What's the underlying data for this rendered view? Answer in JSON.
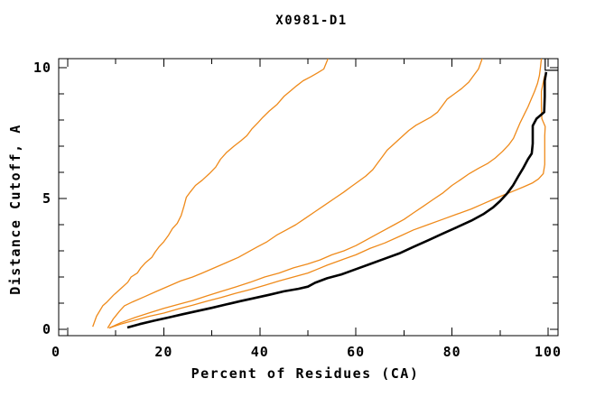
{
  "title": "X0981-D1",
  "colors": {
    "model": "#ef8a1a",
    "target": "#000000",
    "axis": "#000000",
    "background": "#ffffff"
  },
  "axes": {
    "x": {
      "label": "Percent of Residues (CA)",
      "range": [
        0,
        100
      ],
      "major_ticks": [
        0,
        20,
        40,
        60,
        80,
        100
      ],
      "minor_ticks": [
        10,
        30,
        50,
        70,
        90
      ]
    },
    "y": {
      "label": "Distance Cutoff, A",
      "range": [
        0,
        10
      ],
      "major_ticks": [
        0,
        5,
        10
      ],
      "minor_ticks": [
        1,
        2,
        3,
        4,
        6,
        7,
        8,
        9
      ]
    }
  },
  "chart_data": {
    "type": "line",
    "title": "X0981-D1",
    "xlabel": "Percent of Residues (CA)",
    "ylabel": "Distance Cutoff, A",
    "xlim": [
      -2,
      102
    ],
    "ylim": [
      -0.25,
      10.35
    ],
    "grid": false,
    "legend": "none",
    "series": [
      {
        "name": "model-1",
        "role": "model",
        "points": [
          [
            5.2,
            0.1
          ],
          [
            6,
            0.5
          ],
          [
            7.3,
            0.9
          ],
          [
            8.2,
            1.05
          ],
          [
            9.5,
            1.3
          ],
          [
            11,
            1.55
          ],
          [
            12.5,
            1.8
          ],
          [
            13.2,
            2
          ],
          [
            14.5,
            2.15
          ],
          [
            15.2,
            2.35
          ],
          [
            16.2,
            2.55
          ],
          [
            17.5,
            2.75
          ],
          [
            18.2,
            2.95
          ],
          [
            19,
            3.15
          ],
          [
            20,
            3.35
          ],
          [
            21,
            3.6
          ],
          [
            21.8,
            3.85
          ],
          [
            22.8,
            4.05
          ],
          [
            23.6,
            4.35
          ],
          [
            24.2,
            4.7
          ],
          [
            24.7,
            5.05
          ],
          [
            25.5,
            5.25
          ],
          [
            26.6,
            5.5
          ],
          [
            28,
            5.7
          ],
          [
            29.5,
            5.95
          ],
          [
            30.8,
            6.2
          ],
          [
            31.8,
            6.5
          ],
          [
            33,
            6.75
          ],
          [
            34.6,
            7
          ],
          [
            36,
            7.2
          ],
          [
            37.3,
            7.4
          ],
          [
            38.3,
            7.65
          ],
          [
            39.6,
            7.9
          ],
          [
            40.6,
            8.1
          ],
          [
            42,
            8.35
          ],
          [
            43.6,
            8.6
          ],
          [
            45,
            8.9
          ],
          [
            46.3,
            9.1
          ],
          [
            47.6,
            9.3
          ],
          [
            49,
            9.5
          ],
          [
            50.6,
            9.65
          ],
          [
            52,
            9.8
          ],
          [
            53.3,
            9.95
          ],
          [
            54.2,
            10.35
          ]
        ]
      },
      {
        "name": "model-2",
        "role": "model",
        "points": [
          [
            8.3,
            0.05
          ],
          [
            9.5,
            0.4
          ],
          [
            10.8,
            0.7
          ],
          [
            11.8,
            0.9
          ],
          [
            13.5,
            1.05
          ],
          [
            16,
            1.25
          ],
          [
            18.5,
            1.45
          ],
          [
            21,
            1.65
          ],
          [
            23.5,
            1.85
          ],
          [
            26,
            2.0
          ],
          [
            28,
            2.15
          ],
          [
            30.5,
            2.35
          ],
          [
            33,
            2.55
          ],
          [
            35.5,
            2.75
          ],
          [
            37.5,
            2.95
          ],
          [
            39.5,
            3.15
          ],
          [
            41.5,
            3.35
          ],
          [
            43.5,
            3.6
          ],
          [
            45.5,
            3.8
          ],
          [
            47.5,
            4.0
          ],
          [
            49.5,
            4.25
          ],
          [
            51.5,
            4.5
          ],
          [
            53.5,
            4.75
          ],
          [
            55.5,
            5.0
          ],
          [
            57.5,
            5.25
          ],
          [
            59,
            5.45
          ],
          [
            60.5,
            5.65
          ],
          [
            62,
            5.85
          ],
          [
            63.5,
            6.1
          ],
          [
            64.5,
            6.35
          ],
          [
            65.5,
            6.6
          ],
          [
            66.5,
            6.85
          ],
          [
            68,
            7.1
          ],
          [
            69.5,
            7.35
          ],
          [
            71,
            7.6
          ],
          [
            72.5,
            7.8
          ],
          [
            74,
            7.95
          ],
          [
            75.5,
            8.1
          ],
          [
            77,
            8.3
          ],
          [
            78,
            8.55
          ],
          [
            79,
            8.8
          ],
          [
            80.5,
            9.0
          ],
          [
            82,
            9.2
          ],
          [
            83.5,
            9.45
          ],
          [
            84.5,
            9.7
          ],
          [
            85.5,
            9.95
          ],
          [
            86.3,
            10.35
          ]
        ]
      },
      {
        "name": "model-3",
        "role": "model",
        "points": [
          [
            8.6,
            0.05
          ],
          [
            11,
            0.25
          ],
          [
            14,
            0.45
          ],
          [
            17,
            0.63
          ],
          [
            20,
            0.8
          ],
          [
            23,
            0.95
          ],
          [
            26,
            1.1
          ],
          [
            29,
            1.28
          ],
          [
            32,
            1.45
          ],
          [
            35,
            1.62
          ],
          [
            38,
            1.8
          ],
          [
            41,
            2.0
          ],
          [
            44,
            2.15
          ],
          [
            47,
            2.35
          ],
          [
            50,
            2.5
          ],
          [
            52.5,
            2.65
          ],
          [
            55,
            2.85
          ],
          [
            57.5,
            3.0
          ],
          [
            60,
            3.2
          ],
          [
            62,
            3.4
          ],
          [
            64,
            3.6
          ],
          [
            66,
            3.8
          ],
          [
            68,
            4.0
          ],
          [
            70,
            4.2
          ],
          [
            72,
            4.45
          ],
          [
            74,
            4.7
          ],
          [
            76,
            4.95
          ],
          [
            78,
            5.2
          ],
          [
            80,
            5.5
          ],
          [
            81.8,
            5.72
          ],
          [
            83.6,
            5.95
          ],
          [
            85.5,
            6.15
          ],
          [
            87.5,
            6.35
          ],
          [
            89,
            6.55
          ],
          [
            90.5,
            6.8
          ],
          [
            91.8,
            7.05
          ],
          [
            92.8,
            7.3
          ],
          [
            93.6,
            7.65
          ],
          [
            94.2,
            7.9
          ],
          [
            95,
            8.2
          ],
          [
            95.8,
            8.5
          ],
          [
            96.5,
            8.8
          ],
          [
            97.2,
            9.1
          ],
          [
            97.8,
            9.4
          ],
          [
            98.2,
            9.7
          ],
          [
            98.4,
            10.0
          ],
          [
            98.6,
            10.35
          ]
        ]
      },
      {
        "name": "model-4",
        "role": "model",
        "points": [
          [
            8.6,
            0.05
          ],
          [
            11,
            0.2
          ],
          [
            14,
            0.35
          ],
          [
            17,
            0.5
          ],
          [
            20,
            0.62
          ],
          [
            23,
            0.78
          ],
          [
            26,
            0.92
          ],
          [
            29,
            1.08
          ],
          [
            32,
            1.22
          ],
          [
            35,
            1.38
          ],
          [
            38,
            1.52
          ],
          [
            41,
            1.68
          ],
          [
            44,
            1.85
          ],
          [
            47,
            2.0
          ],
          [
            50,
            2.15
          ],
          [
            52,
            2.3
          ],
          [
            54,
            2.45
          ],
          [
            57,
            2.65
          ],
          [
            60,
            2.85
          ],
          [
            63,
            3.1
          ],
          [
            66,
            3.3
          ],
          [
            69,
            3.55
          ],
          [
            72,
            3.8
          ],
          [
            75,
            4.0
          ],
          [
            78,
            4.2
          ],
          [
            81,
            4.4
          ],
          [
            84,
            4.6
          ],
          [
            86.5,
            4.8
          ],
          [
            89,
            5.0
          ],
          [
            91,
            5.15
          ],
          [
            93,
            5.3
          ],
          [
            95,
            5.45
          ],
          [
            96.8,
            5.6
          ],
          [
            98,
            5.75
          ],
          [
            99,
            5.95
          ],
          [
            99.3,
            6.3
          ],
          [
            99.3,
            7.4
          ],
          [
            99.4,
            7.75
          ],
          [
            98.7,
            8.05
          ],
          [
            98.6,
            8.5
          ],
          [
            98.6,
            9.1
          ],
          [
            99.0,
            9.45
          ],
          [
            99.3,
            9.7
          ]
        ]
      },
      {
        "name": "target",
        "role": "target",
        "points": [
          [
            12.4,
            0.07
          ],
          [
            15,
            0.2
          ],
          [
            18,
            0.33
          ],
          [
            21,
            0.45
          ],
          [
            24,
            0.58
          ],
          [
            27,
            0.7
          ],
          [
            30,
            0.82
          ],
          [
            33,
            0.95
          ],
          [
            36,
            1.08
          ],
          [
            39,
            1.2
          ],
          [
            42,
            1.32
          ],
          [
            45,
            1.45
          ],
          [
            48,
            1.55
          ],
          [
            50,
            1.63
          ],
          [
            51.5,
            1.78
          ],
          [
            54,
            1.95
          ],
          [
            57,
            2.1
          ],
          [
            60,
            2.3
          ],
          [
            63,
            2.5
          ],
          [
            66,
            2.7
          ],
          [
            69,
            2.9
          ],
          [
            72,
            3.15
          ],
          [
            75,
            3.4
          ],
          [
            78,
            3.65
          ],
          [
            81,
            3.9
          ],
          [
            84,
            4.15
          ],
          [
            86.5,
            4.4
          ],
          [
            88.5,
            4.65
          ],
          [
            90,
            4.9
          ],
          [
            91.5,
            5.2
          ],
          [
            92.7,
            5.5
          ],
          [
            93.8,
            5.85
          ],
          [
            94.8,
            6.15
          ],
          [
            95.8,
            6.5
          ],
          [
            96.6,
            6.72
          ],
          [
            96.8,
            7.1
          ],
          [
            96.8,
            7.78
          ],
          [
            97.6,
            8.05
          ],
          [
            99.2,
            8.3
          ],
          [
            99.3,
            8.9
          ],
          [
            99.3,
            9.5
          ],
          [
            99.6,
            9.83
          ]
        ]
      },
      {
        "name": "target-endcap",
        "role": "target-thin",
        "points": [
          [
            99.4,
            10.35
          ],
          [
            99.4,
            9.9
          ],
          [
            102.1,
            9.9
          ]
        ]
      }
    ]
  }
}
